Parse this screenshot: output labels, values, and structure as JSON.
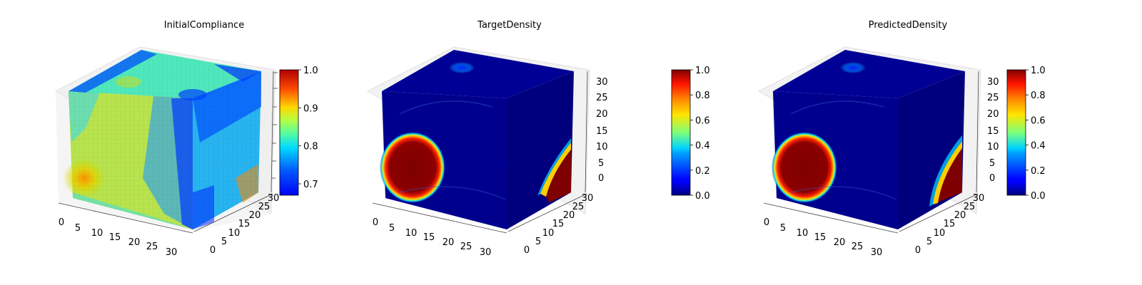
{
  "chart_data": [
    {
      "type": "voxel-3d",
      "title": "InitialCompliance",
      "x_ticks": [
        "0",
        "5",
        "10",
        "15",
        "20",
        "25",
        "30"
      ],
      "y_ticks": [
        "0",
        "5",
        "10",
        "15",
        "20",
        "25",
        "30"
      ],
      "z_ticks": [],
      "colorbar": {
        "cmap": "jet",
        "range": [
          0.67,
          1.0
        ],
        "ticks": [
          "0.7",
          "0.8",
          "0.9",
          "1.0"
        ],
        "tick_values": [
          0.7,
          0.8,
          0.9,
          1.0
        ]
      },
      "grid_size": 32
    },
    {
      "type": "voxel-3d",
      "title": "TargetDensity",
      "x_ticks": [
        "0",
        "5",
        "10",
        "15",
        "20",
        "25",
        "30"
      ],
      "y_ticks": [
        "0",
        "5",
        "10",
        "15",
        "20",
        "25",
        "30"
      ],
      "z_ticks": [
        "0",
        "5",
        "10",
        "15",
        "20",
        "25",
        "30"
      ],
      "colorbar": {
        "cmap": "jet",
        "range": [
          0.0,
          1.0
        ],
        "ticks": [
          "0.0",
          "0.2",
          "0.4",
          "0.6",
          "0.8",
          "1.0"
        ],
        "tick_values": [
          0.0,
          0.2,
          0.4,
          0.6,
          0.8,
          1.0
        ]
      },
      "grid_size": 32
    },
    {
      "type": "voxel-3d",
      "title": "PredictedDensity",
      "x_ticks": [
        "0",
        "5",
        "10",
        "15",
        "20",
        "25",
        "30"
      ],
      "y_ticks": [
        "0",
        "5",
        "10",
        "15",
        "20",
        "25",
        "30"
      ],
      "z_ticks": [
        "0",
        "5",
        "10",
        "15",
        "20",
        "25",
        "30"
      ],
      "colorbar": {
        "cmap": "jet",
        "range": [
          0.0,
          1.0
        ],
        "ticks": [
          "0.0",
          "0.2",
          "0.4",
          "0.6",
          "0.8",
          "1.0"
        ],
        "tick_values": [
          0.0,
          0.2,
          0.4,
          0.6,
          0.8,
          1.0
        ]
      },
      "grid_size": 32
    }
  ]
}
